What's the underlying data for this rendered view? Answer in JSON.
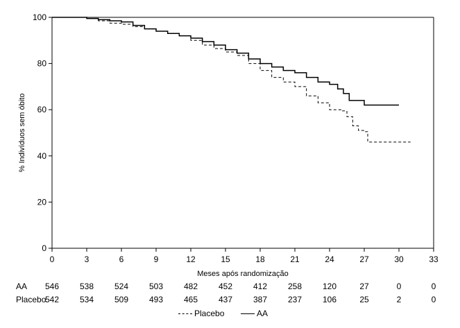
{
  "chart_data": {
    "type": "line",
    "title": "",
    "xlabel": "Meses após randomização",
    "ylabel": "% Indivíduos sem óbito",
    "xlim": [
      0,
      33
    ],
    "ylim": [
      0,
      100
    ],
    "xticks": [
      "0",
      "3",
      "6",
      "9",
      "12",
      "15",
      "18",
      "21",
      "24",
      "27",
      "30",
      "33"
    ],
    "yticks": [
      "0",
      "20",
      "40",
      "60",
      "80",
      "100"
    ],
    "grid": false,
    "legend_position": "bottom-center",
    "series": [
      {
        "name": "Placebo",
        "style": "dashed",
        "color": "#000000",
        "points": [
          [
            0,
            100
          ],
          [
            3,
            99.5
          ],
          [
            4,
            98.5
          ],
          [
            5,
            97.5
          ],
          [
            6,
            97
          ],
          [
            7,
            96
          ],
          [
            8,
            95
          ],
          [
            9,
            94
          ],
          [
            10,
            93
          ],
          [
            11,
            92
          ],
          [
            12,
            90
          ],
          [
            13,
            88
          ],
          [
            14,
            86.5
          ],
          [
            15,
            85
          ],
          [
            16,
            83.5
          ],
          [
            17,
            80
          ],
          [
            18,
            77
          ],
          [
            19,
            74
          ],
          [
            20,
            72
          ],
          [
            21,
            70
          ],
          [
            22,
            66
          ],
          [
            23,
            63
          ],
          [
            24,
            60
          ],
          [
            25,
            59.5
          ],
          [
            25.5,
            57
          ],
          [
            26,
            53
          ],
          [
            26.5,
            51
          ],
          [
            27,
            50.5
          ],
          [
            27.3,
            46
          ],
          [
            28,
            46
          ],
          [
            31,
            46
          ]
        ]
      },
      {
        "name": "AA",
        "style": "solid",
        "color": "#000000",
        "points": [
          [
            0,
            100
          ],
          [
            3,
            99.5
          ],
          [
            4,
            99
          ],
          [
            5,
            98.5
          ],
          [
            6,
            98
          ],
          [
            7,
            96.5
          ],
          [
            8,
            95
          ],
          [
            9,
            94
          ],
          [
            10,
            93
          ],
          [
            11,
            92
          ],
          [
            12,
            91
          ],
          [
            13,
            89.5
          ],
          [
            14,
            88
          ],
          [
            15,
            86
          ],
          [
            16,
            84.5
          ],
          [
            17,
            82
          ],
          [
            18,
            80
          ],
          [
            19,
            78.5
          ],
          [
            20,
            77
          ],
          [
            21,
            76
          ],
          [
            22,
            74
          ],
          [
            23,
            72
          ],
          [
            24,
            71
          ],
          [
            24.7,
            69
          ],
          [
            25.2,
            67
          ],
          [
            25.7,
            64
          ],
          [
            26.5,
            64
          ],
          [
            27,
            62
          ],
          [
            28,
            62
          ],
          [
            30,
            62
          ]
        ]
      }
    ]
  },
  "risk_table": {
    "rows": [
      {
        "label": "AA",
        "values": [
          "546",
          "538",
          "524",
          "503",
          "482",
          "452",
          "412",
          "258",
          "120",
          "27",
          "0",
          "0"
        ]
      },
      {
        "label": "Placebo",
        "values": [
          "542",
          "534",
          "509",
          "493",
          "465",
          "437",
          "387",
          "237",
          "106",
          "25",
          "2",
          "0"
        ]
      }
    ]
  },
  "legend": {
    "items": [
      {
        "label": "Placebo",
        "style": "dashed"
      },
      {
        "label": "AA",
        "style": "solid"
      }
    ]
  }
}
